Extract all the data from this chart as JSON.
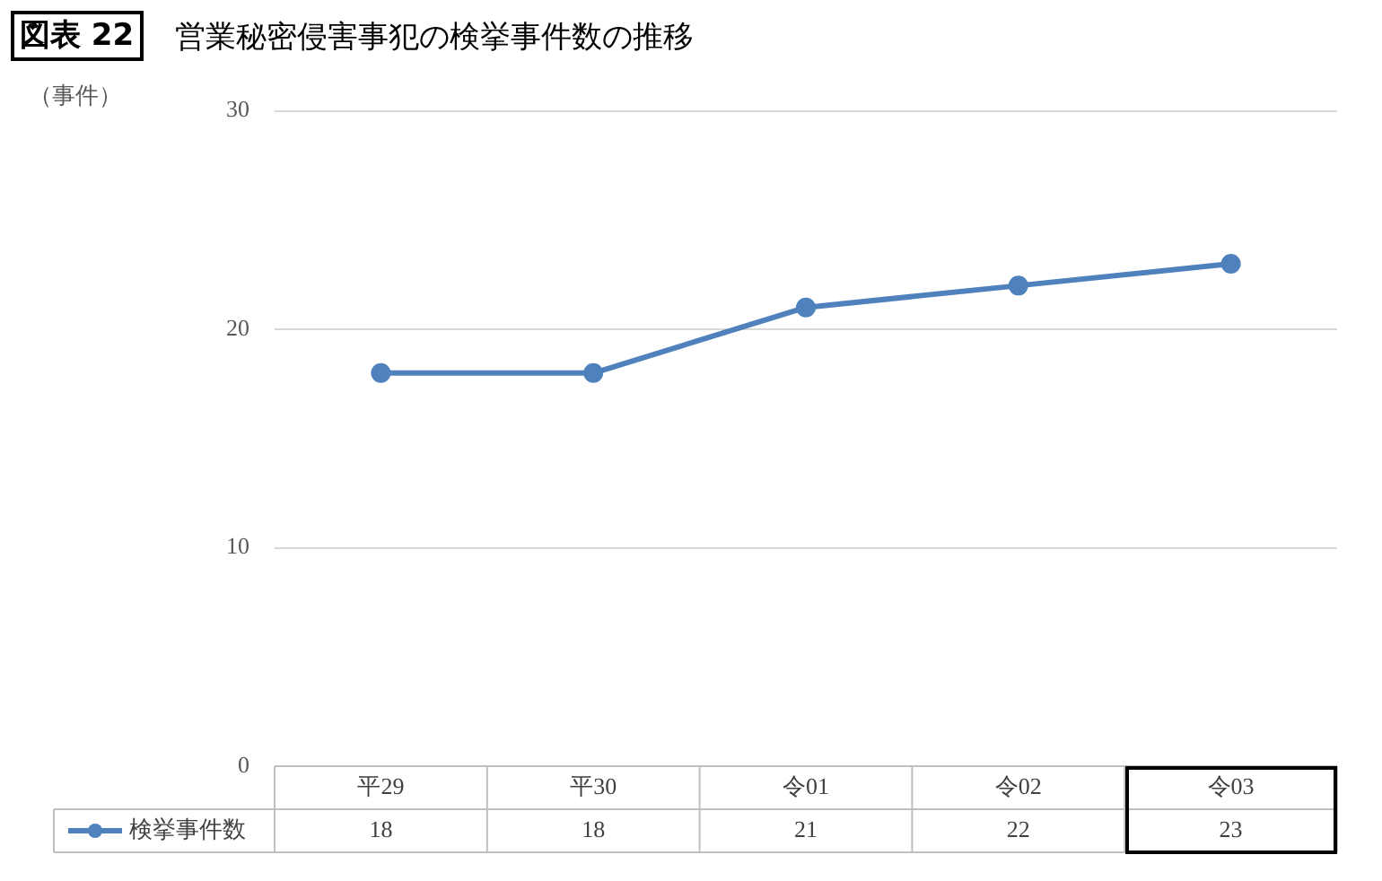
{
  "chart_data": {
    "type": "line",
    "title": "図表 22",
    "subtitle": "営業秘密侵害事犯の検挙事件数の推移",
    "ylabel": "（事件）",
    "categories": [
      "平29",
      "平30",
      "令01",
      "令02",
      "令03"
    ],
    "series": [
      {
        "name": "検挙事件数",
        "color": "#4f81bd",
        "values": [
          18,
          18,
          21,
          22,
          23
        ]
      }
    ],
    "ylim": [
      0,
      30
    ],
    "yticks": [
      0,
      10,
      20,
      30
    ],
    "grid": "y",
    "marker": "circle",
    "line_style": "solid",
    "legend": "bottom",
    "data_labels": true
  }
}
